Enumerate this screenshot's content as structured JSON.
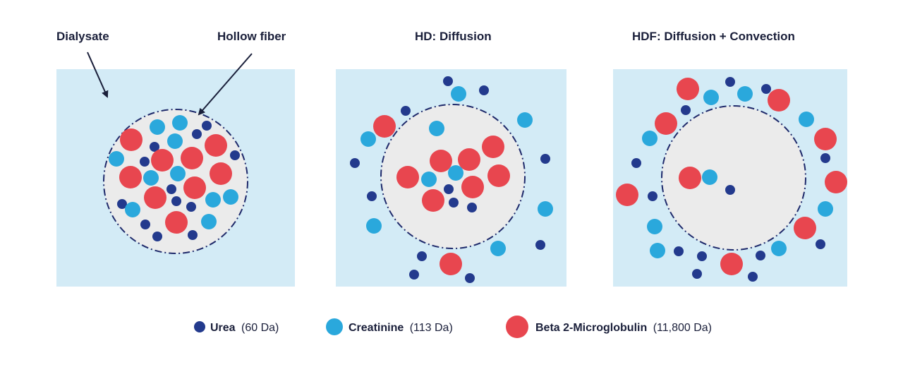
{
  "colors": {
    "background": "#ffffff",
    "dialysate": "#d3ebf6",
    "fiber": "#ebebeb",
    "fiber_border": "#1f2a6b",
    "arrow": "#1a1f3a",
    "text": "#1a1f3a",
    "urea": "#233a8d",
    "creatinine": "#2aa8dc",
    "beta2": "#e8464f"
  },
  "labels": {
    "dialysate": "Dialysate",
    "hollow_fiber": "Hollow fiber",
    "hd_title": "HD: Diffusion",
    "hdf_title": "HDF: Diffusion + Convection"
  },
  "legend": {
    "urea_name": "Urea",
    "urea_weight": "(60 Da)",
    "creatinine_name": "Creatinine",
    "creatinine_weight": "(113 Da)",
    "beta2_name": "Beta 2-Microglobulin",
    "beta2_weight": "(11,800 Da)"
  }
}
